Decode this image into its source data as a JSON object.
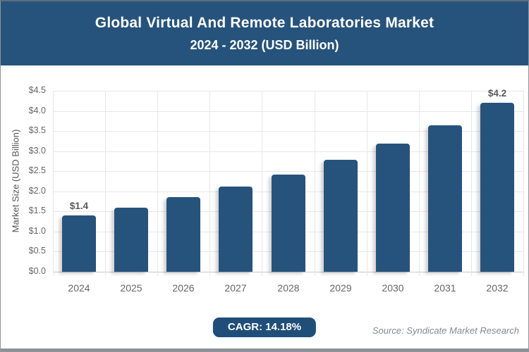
{
  "header": {
    "title": "Global Virtual And Remote Laboratories Market",
    "subtitle": "2024 - 2032 (USD Billion)",
    "bg_color": "#26537c",
    "text_color": "#ffffff"
  },
  "chart_data": {
    "type": "bar",
    "title": "Global Virtual And Remote Laboratories Market",
    "subtitle": "2024 - 2032 (USD Billion)",
    "categories": [
      "2024",
      "2025",
      "2026",
      "2027",
      "2028",
      "2029",
      "2030",
      "2031",
      "2032"
    ],
    "values": [
      1.4,
      1.6,
      1.86,
      2.12,
      2.42,
      2.78,
      3.18,
      3.64,
      4.2
    ],
    "bar_labels": [
      "$1.4",
      "",
      "",
      "",
      "",
      "",
      "",
      "",
      "$4.2"
    ],
    "xlabel": "",
    "ylabel": "Market Size (USD Billion)",
    "ylim": [
      0,
      4.5
    ],
    "ytick_step": 0.5,
    "ytick_labels": [
      "$0.0",
      "$0.5",
      "$1.0",
      "$1.5",
      "$2.0",
      "$2.5",
      "$3.0",
      "$3.5",
      "$4.0",
      "$4.5"
    ],
    "grid": true,
    "legend": false,
    "bar_color": "#26537c"
  },
  "footer": {
    "cagr_label": "CAGR: 14.18%",
    "source": "Source: Syndicate Market Research"
  },
  "colors": {
    "accent_blue": "#26537c",
    "pill_blue": "#1f4e78",
    "grid_line": "#e7e7e7",
    "axis_line": "#c8c8c8",
    "axis_text": "#666666",
    "value_text": "#595959",
    "source_text": "#7d8c96",
    "bottom_strip": "#8d9196"
  }
}
